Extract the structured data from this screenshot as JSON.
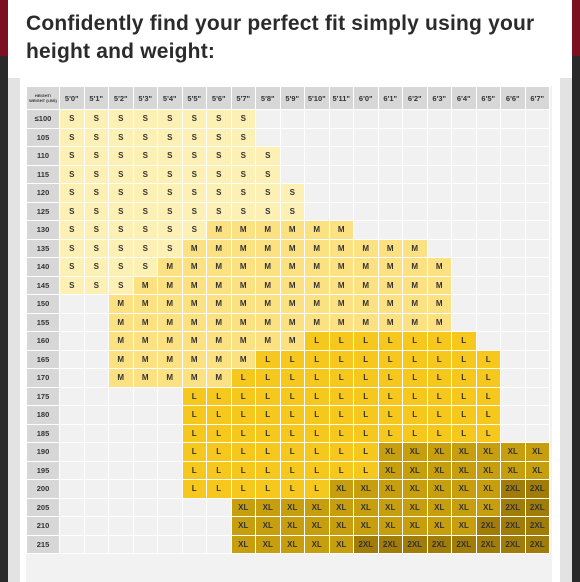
{
  "heading": "Confidently find your perfect fit simply using your height and weight:",
  "corner_label": "HEIGHT/ WEIGHT (LBS)",
  "heights": [
    "5'0\"",
    "5'1\"",
    "5'2\"",
    "5'3\"",
    "5'4\"",
    "5'5\"",
    "5'6\"",
    "5'7\"",
    "5'8\"",
    "5'9\"",
    "5'10\"",
    "5'11\"",
    "6'0\"",
    "6'1\"",
    "6'2\"",
    "6'3\"",
    "6'4\"",
    "6'5\"",
    "6'6\"",
    "6'7\""
  ],
  "rows": [
    {
      "weight": "≤100",
      "sizes": [
        "S",
        "S",
        "S",
        "S",
        "S",
        "S",
        "S",
        "S",
        "",
        "",
        "",
        "",
        "",
        "",
        "",
        "",
        "",
        "",
        "",
        ""
      ]
    },
    {
      "weight": "105",
      "sizes": [
        "S",
        "S",
        "S",
        "S",
        "S",
        "S",
        "S",
        "S",
        "",
        "",
        "",
        "",
        "",
        "",
        "",
        "",
        "",
        "",
        "",
        ""
      ]
    },
    {
      "weight": "110",
      "sizes": [
        "S",
        "S",
        "S",
        "S",
        "S",
        "S",
        "S",
        "S",
        "S",
        "",
        "",
        "",
        "",
        "",
        "",
        "",
        "",
        "",
        "",
        ""
      ]
    },
    {
      "weight": "115",
      "sizes": [
        "S",
        "S",
        "S",
        "S",
        "S",
        "S",
        "S",
        "S",
        "S",
        "",
        "",
        "",
        "",
        "",
        "",
        "",
        "",
        "",
        "",
        ""
      ]
    },
    {
      "weight": "120",
      "sizes": [
        "S",
        "S",
        "S",
        "S",
        "S",
        "S",
        "S",
        "S",
        "S",
        "S",
        "",
        "",
        "",
        "",
        "",
        "",
        "",
        "",
        "",
        ""
      ]
    },
    {
      "weight": "125",
      "sizes": [
        "S",
        "S",
        "S",
        "S",
        "S",
        "S",
        "S",
        "S",
        "S",
        "S",
        "",
        "",
        "",
        "",
        "",
        "",
        "",
        "",
        "",
        ""
      ]
    },
    {
      "weight": "130",
      "sizes": [
        "S",
        "S",
        "S",
        "S",
        "S",
        "S",
        "M",
        "M",
        "M",
        "M",
        "M",
        "M",
        "",
        "",
        "",
        "",
        "",
        "",
        "",
        ""
      ]
    },
    {
      "weight": "135",
      "sizes": [
        "S",
        "S",
        "S",
        "S",
        "S",
        "M",
        "M",
        "M",
        "M",
        "M",
        "M",
        "M",
        "M",
        "M",
        "M",
        "",
        "",
        "",
        "",
        ""
      ]
    },
    {
      "weight": "140",
      "sizes": [
        "S",
        "S",
        "S",
        "S",
        "M",
        "M",
        "M",
        "M",
        "M",
        "M",
        "M",
        "M",
        "M",
        "M",
        "M",
        "M",
        "",
        "",
        "",
        ""
      ]
    },
    {
      "weight": "145",
      "sizes": [
        "S",
        "S",
        "S",
        "M",
        "M",
        "M",
        "M",
        "M",
        "M",
        "M",
        "M",
        "M",
        "M",
        "M",
        "M",
        "M",
        "",
        "",
        "",
        ""
      ]
    },
    {
      "weight": "150",
      "sizes": [
        "",
        "",
        "M",
        "M",
        "M",
        "M",
        "M",
        "M",
        "M",
        "M",
        "M",
        "M",
        "M",
        "M",
        "M",
        "M",
        "",
        "",
        "",
        ""
      ]
    },
    {
      "weight": "155",
      "sizes": [
        "",
        "",
        "M",
        "M",
        "M",
        "M",
        "M",
        "M",
        "M",
        "M",
        "M",
        "M",
        "M",
        "M",
        "M",
        "M",
        "",
        "",
        "",
        ""
      ]
    },
    {
      "weight": "160",
      "sizes": [
        "",
        "",
        "M",
        "M",
        "M",
        "M",
        "M",
        "M",
        "M",
        "M",
        "L",
        "L",
        "L",
        "L",
        "L",
        "L",
        "L",
        "",
        "",
        ""
      ]
    },
    {
      "weight": "165",
      "sizes": [
        "",
        "",
        "M",
        "M",
        "M",
        "M",
        "M",
        "M",
        "L",
        "L",
        "L",
        "L",
        "L",
        "L",
        "L",
        "L",
        "L",
        "L",
        "",
        ""
      ]
    },
    {
      "weight": "170",
      "sizes": [
        "",
        "",
        "M",
        "M",
        "M",
        "M",
        "M",
        "L",
        "L",
        "L",
        "L",
        "L",
        "L",
        "L",
        "L",
        "L",
        "L",
        "L",
        "",
        ""
      ]
    },
    {
      "weight": "175",
      "sizes": [
        "",
        "",
        "",
        "",
        "",
        "L",
        "L",
        "L",
        "L",
        "L",
        "L",
        "L",
        "L",
        "L",
        "L",
        "L",
        "L",
        "L",
        "",
        ""
      ]
    },
    {
      "weight": "180",
      "sizes": [
        "",
        "",
        "",
        "",
        "",
        "L",
        "L",
        "L",
        "L",
        "L",
        "L",
        "L",
        "L",
        "L",
        "L",
        "L",
        "L",
        "L",
        "",
        ""
      ]
    },
    {
      "weight": "185",
      "sizes": [
        "",
        "",
        "",
        "",
        "",
        "L",
        "L",
        "L",
        "L",
        "L",
        "L",
        "L",
        "L",
        "L",
        "L",
        "L",
        "L",
        "L",
        "",
        ""
      ]
    },
    {
      "weight": "190",
      "sizes": [
        "",
        "",
        "",
        "",
        "",
        "L",
        "L",
        "L",
        "L",
        "L",
        "L",
        "L",
        "L",
        "XL",
        "XL",
        "XL",
        "XL",
        "XL",
        "XL",
        "XL"
      ]
    },
    {
      "weight": "195",
      "sizes": [
        "",
        "",
        "",
        "",
        "",
        "L",
        "L",
        "L",
        "L",
        "L",
        "L",
        "L",
        "L",
        "XL",
        "XL",
        "XL",
        "XL",
        "XL",
        "XL",
        "XL"
      ]
    },
    {
      "weight": "200",
      "sizes": [
        "",
        "",
        "",
        "",
        "",
        "L",
        "L",
        "L",
        "L",
        "L",
        "L",
        "XL",
        "XL",
        "XL",
        "XL",
        "XL",
        "XL",
        "XL",
        "2XL",
        "2XL"
      ]
    },
    {
      "weight": "205",
      "sizes": [
        "",
        "",
        "",
        "",
        "",
        "",
        "",
        "XL",
        "XL",
        "XL",
        "XL",
        "XL",
        "XL",
        "XL",
        "XL",
        "XL",
        "XL",
        "XL",
        "2XL",
        "2XL"
      ]
    },
    {
      "weight": "210",
      "sizes": [
        "",
        "",
        "",
        "",
        "",
        "",
        "",
        "XL",
        "XL",
        "XL",
        "XL",
        "XL",
        "XL",
        "XL",
        "XL",
        "XL",
        "XL",
        "2XL",
        "2XL",
        "2XL"
      ]
    },
    {
      "weight": "215",
      "sizes": [
        "",
        "",
        "",
        "",
        "",
        "",
        "",
        "XL",
        "XL",
        "XL",
        "XL",
        "XL",
        "2XL",
        "2XL",
        "2XL",
        "2XL",
        "2XL",
        "2XL",
        "2XL",
        "2XL"
      ]
    }
  ],
  "colors": {
    "S": "#fdf0b5",
    "M": "#fbe181",
    "L": "#f6c81e",
    "XL": "#c79f0e",
    "2XL": "#a17c08",
    "empty": "#f1f1f1",
    "header": "#d7d7d7"
  }
}
